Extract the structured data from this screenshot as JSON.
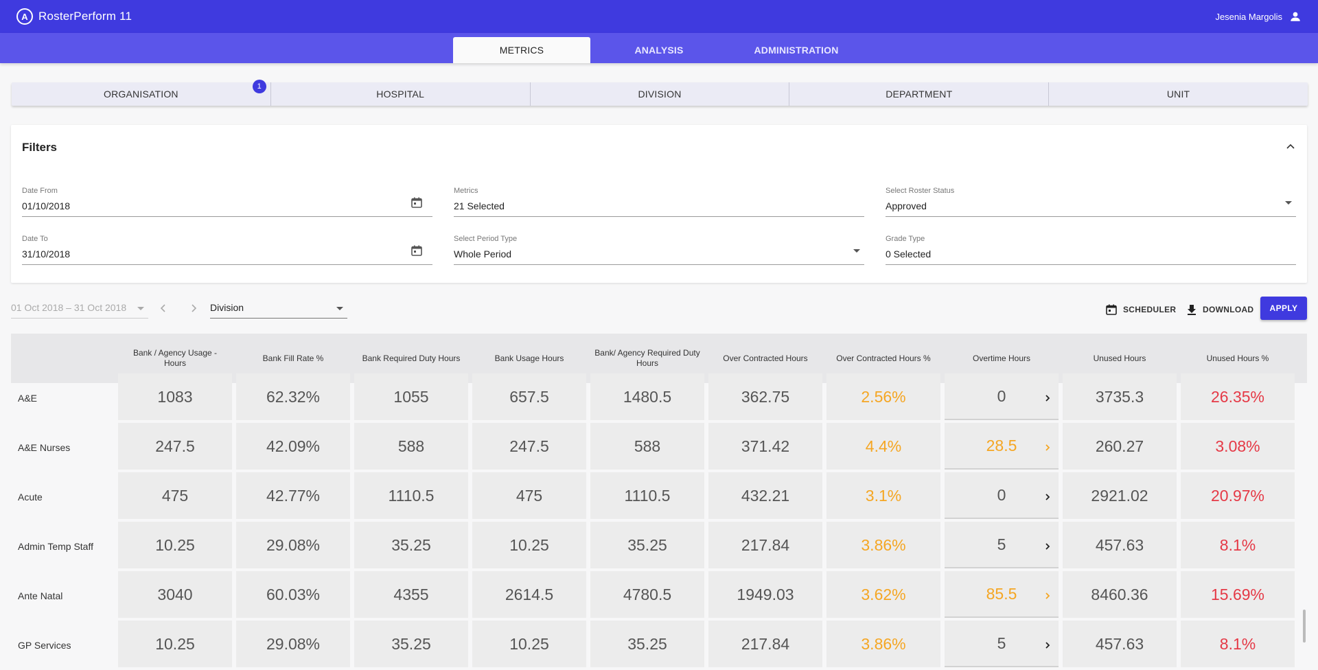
{
  "app": {
    "logo_letter": "A",
    "brand_prefix": "Roster",
    "brand_suffix": "Perform 11",
    "user_name": "Jesenia Margolis"
  },
  "tabs": [
    {
      "label": "METRICS",
      "active": true
    },
    {
      "label": "ANALYSIS",
      "active": false
    },
    {
      "label": "ADMINISTRATION",
      "active": false
    }
  ],
  "hierarchy": [
    {
      "label": "ORGANISATION",
      "badge": "1"
    },
    {
      "label": "HOSPITAL"
    },
    {
      "label": "DIVISION"
    },
    {
      "label": "DEPARTMENT"
    },
    {
      "label": "UNIT"
    }
  ],
  "filters": {
    "title": "Filters",
    "date_from": {
      "label": "Date From",
      "value": "01/10/2018"
    },
    "date_to": {
      "label": "Date To",
      "value": "31/10/2018"
    },
    "metrics": {
      "label": "Metrics",
      "value": "21 Selected"
    },
    "period_type": {
      "label": "Select Period Type",
      "value": "Whole Period"
    },
    "roster_status": {
      "label": "Select Roster Status",
      "value": "Approved"
    },
    "grade_type": {
      "label": "Grade Type",
      "value": "0 Selected"
    }
  },
  "toolbar": {
    "period_range": "01 Oct 2018 – 31 Oct 2018",
    "level": "Division",
    "scheduler_label": "SCHEDULER",
    "download_label": "DOWNLOAD",
    "apply_label": "APPLY"
  },
  "colors": {
    "primary": "#3f3adf",
    "tab_bar": "#5b55ea",
    "warning": "#f5a623",
    "danger": "#e53946"
  },
  "table": {
    "columns": [
      "Bank / Agency Usage - Hours",
      "Bank Fill Rate %",
      "Bank Required Duty Hours",
      "Bank Usage Hours",
      "Bank/ Agency Required Duty Hours",
      "Over Contracted Hours",
      "Over Contracted Hours %",
      "Overtime Hours",
      "Unused Hours",
      "Unused Hours %"
    ],
    "rows": [
      {
        "label": "A&E",
        "values": [
          "1083",
          "62.32%",
          "1055",
          "657.5",
          "1480.5",
          "362.75",
          "2.56%",
          "0",
          "3735.3",
          "26.35%"
        ],
        "overtime_highlight": false
      },
      {
        "label": "A&E Nurses",
        "values": [
          "247.5",
          "42.09%",
          "588",
          "247.5",
          "588",
          "371.42",
          "4.4%",
          "28.5",
          "260.27",
          "3.08%"
        ],
        "overtime_highlight": true
      },
      {
        "label": "Acute",
        "values": [
          "475",
          "42.77%",
          "1110.5",
          "475",
          "1110.5",
          "432.21",
          "3.1%",
          "0",
          "2921.02",
          "20.97%"
        ],
        "overtime_highlight": false
      },
      {
        "label": "Admin Temp Staff",
        "values": [
          "10.25",
          "29.08%",
          "35.25",
          "10.25",
          "35.25",
          "217.84",
          "3.86%",
          "5",
          "457.63",
          "8.1%"
        ],
        "overtime_highlight": false
      },
      {
        "label": "Ante Natal",
        "values": [
          "3040",
          "60.03%",
          "4355",
          "2614.5",
          "4780.5",
          "1949.03",
          "3.62%",
          "85.5",
          "8460.36",
          "15.69%"
        ],
        "overtime_highlight": true
      },
      {
        "label": "GP Services",
        "values": [
          "10.25",
          "29.08%",
          "35.25",
          "10.25",
          "35.25",
          "217.84",
          "3.86%",
          "5",
          "457.63",
          "8.1%"
        ],
        "overtime_highlight": false
      }
    ]
  }
}
